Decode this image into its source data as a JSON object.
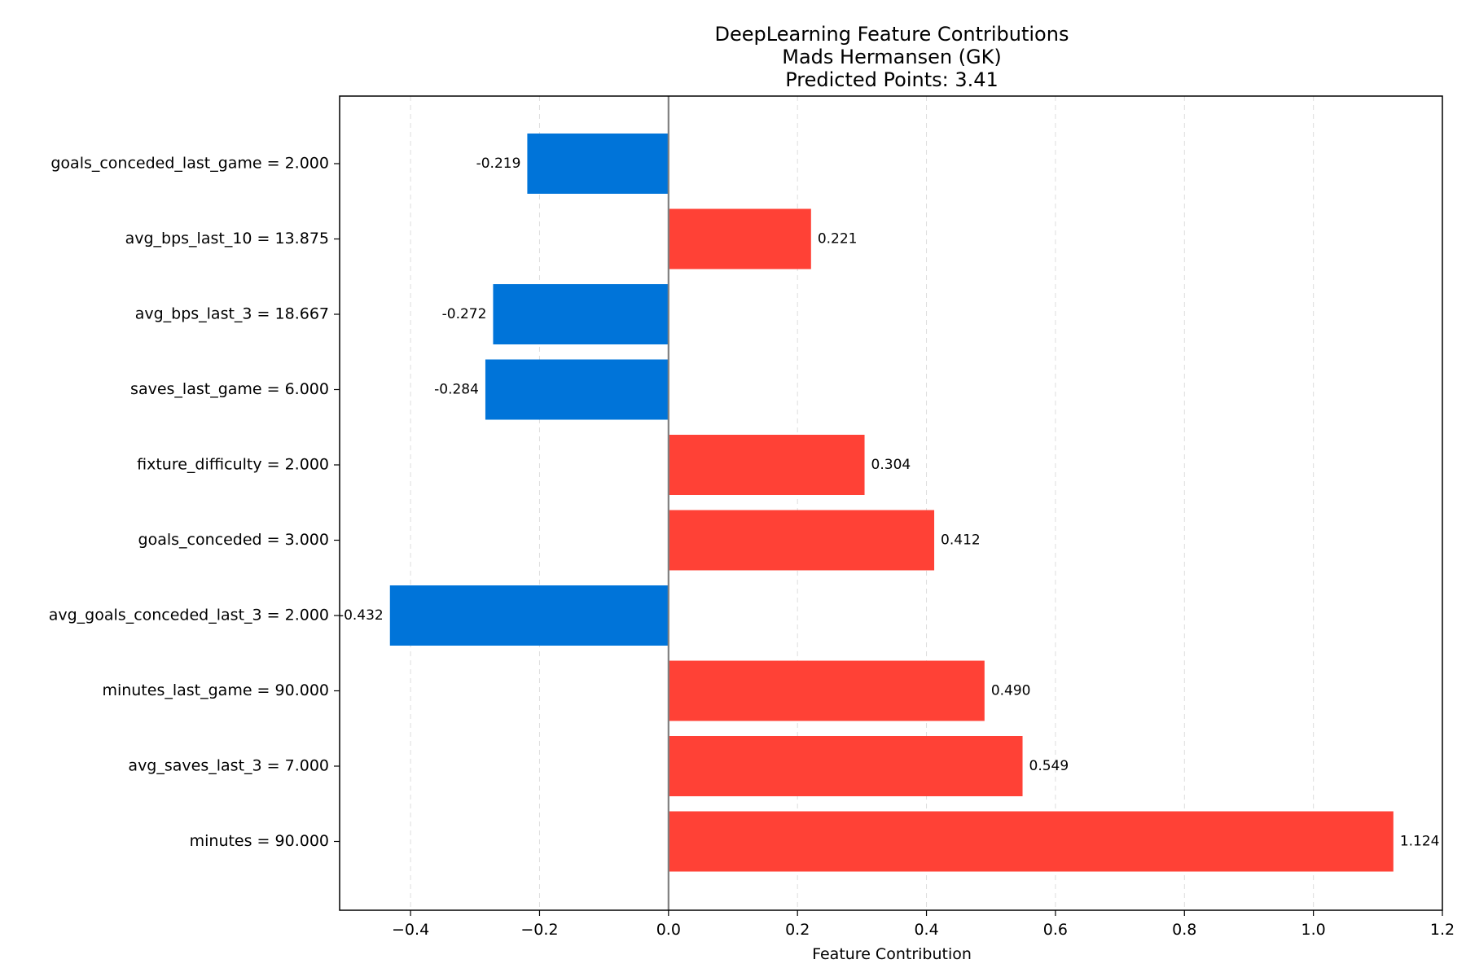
{
  "chart_data": {
    "type": "bar",
    "orientation": "horizontal",
    "title": [
      "DeepLearning Feature Contributions",
      "Mads Hermansen (GK)",
      "Predicted Points: 3.41"
    ],
    "xlabel": "Feature Contribution",
    "ylabel": "",
    "xlim": [
      -0.51,
      1.2
    ],
    "xticks": [
      -0.4,
      -0.2,
      0.0,
      0.2,
      0.4,
      0.6,
      0.8,
      1.0,
      1.2
    ],
    "xtick_labels": [
      "−0.4",
      "−0.2",
      "0.0",
      "0.2",
      "0.4",
      "0.6",
      "0.8",
      "1.0",
      "1.2"
    ],
    "grid": "x-dashed",
    "categories": [
      "goals_conceded_last_game = 2.000",
      "avg_bps_last_10 = 13.875",
      "avg_bps_last_3 = 18.667",
      "saves_last_game = 6.000",
      "fixture_difficulty = 2.000",
      "goals_conceded = 3.000",
      "avg_goals_conceded_last_3 = 2.000",
      "minutes_last_game = 90.000",
      "avg_saves_last_3 = 7.000",
      "minutes = 90.000"
    ],
    "values": [
      -0.219,
      0.221,
      -0.272,
      -0.284,
      0.304,
      0.412,
      -0.432,
      0.49,
      0.549,
      1.124
    ],
    "value_labels": [
      "-0.219",
      "0.221",
      "-0.272",
      "-0.284",
      "0.304",
      "0.412",
      "-0.432",
      "0.490",
      "0.549",
      "1.124"
    ],
    "colors": {
      "positive": "#ff4136",
      "negative": "#0074d9",
      "zero_line": "#808080",
      "grid": "#dddddd"
    }
  }
}
